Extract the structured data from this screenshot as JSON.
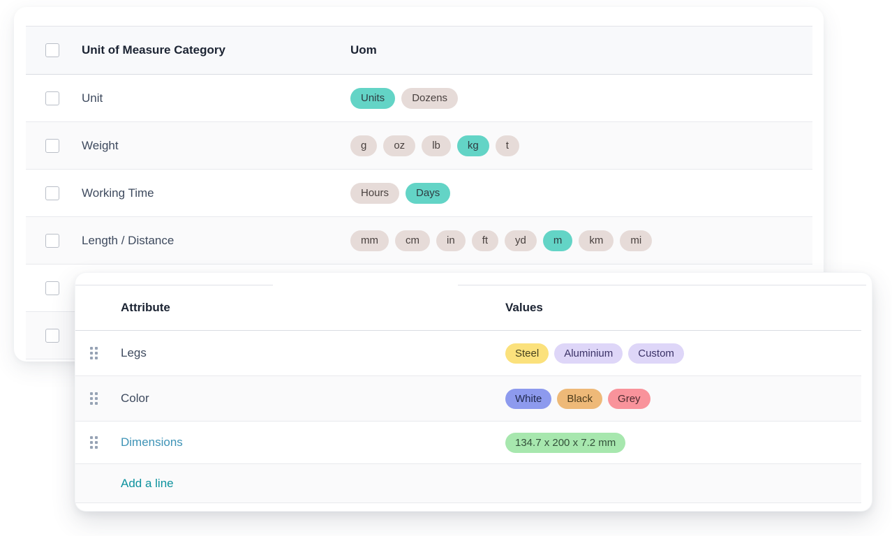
{
  "uom_table": {
    "headers": {
      "category": "Unit of Measure Category",
      "uom": "Uom"
    },
    "rows": [
      {
        "category": "Unit",
        "tags": [
          {
            "label": "Units",
            "color": "teal"
          },
          {
            "label": "Dozens",
            "color": "taupe"
          }
        ]
      },
      {
        "category": "Weight",
        "tags": [
          {
            "label": "g",
            "color": "taupe"
          },
          {
            "label": "oz",
            "color": "taupe"
          },
          {
            "label": "lb",
            "color": "taupe"
          },
          {
            "label": "kg",
            "color": "teal"
          },
          {
            "label": "t",
            "color": "taupe"
          }
        ]
      },
      {
        "category": "Working Time",
        "tags": [
          {
            "label": "Hours",
            "color": "taupe"
          },
          {
            "label": "Days",
            "color": "teal"
          }
        ]
      },
      {
        "category": "Length / Distance",
        "tags": [
          {
            "label": "mm",
            "color": "taupe"
          },
          {
            "label": "cm",
            "color": "taupe"
          },
          {
            "label": "in",
            "color": "taupe"
          },
          {
            "label": "ft",
            "color": "taupe"
          },
          {
            "label": "yd",
            "color": "taupe"
          },
          {
            "label": "m",
            "color": "teal"
          },
          {
            "label": "km",
            "color": "taupe"
          },
          {
            "label": "mi",
            "color": "taupe"
          }
        ]
      }
    ]
  },
  "attributes_table": {
    "headers": {
      "attribute": "Attribute",
      "values": "Values"
    },
    "rows": [
      {
        "attribute": "Legs",
        "is_link": false,
        "tags": [
          {
            "label": "Steel",
            "color": "yellow"
          },
          {
            "label": "Aluminium",
            "color": "lavender"
          },
          {
            "label": "Custom",
            "color": "lavender"
          }
        ]
      },
      {
        "attribute": "Color",
        "is_link": false,
        "tags": [
          {
            "label": "White",
            "color": "periwinkle"
          },
          {
            "label": "Black",
            "color": "tan"
          },
          {
            "label": "Grey",
            "color": "salmon"
          }
        ]
      },
      {
        "attribute": "Dimensions",
        "is_link": true,
        "tags": [
          {
            "label": "134.7 x 200 x 7.2 mm",
            "color": "green"
          }
        ]
      }
    ],
    "footer_action": "Add a line"
  },
  "colors": {
    "teal": {
      "bg": "#63d4c6",
      "text": "#2f3c41"
    },
    "taupe": {
      "bg": "#e6dbd8",
      "text": "#49413f"
    },
    "yellow": {
      "bg": "#fbe17c",
      "text": "#45411e"
    },
    "lavender": {
      "bg": "#ded6f8",
      "text": "#3a3166"
    },
    "periwinkle": {
      "bg": "#8d9aee",
      "text": "#20294e"
    },
    "tan": {
      "bg": "#eeb978",
      "text": "#4a3a1a"
    },
    "salmon": {
      "bg": "#f9939b",
      "text": "#4c2a2e"
    },
    "green": {
      "bg": "#a7e7ae",
      "text": "#33503a"
    },
    "dimensions_link": "#3e93b6",
    "add_line_link": "#0d929e"
  }
}
